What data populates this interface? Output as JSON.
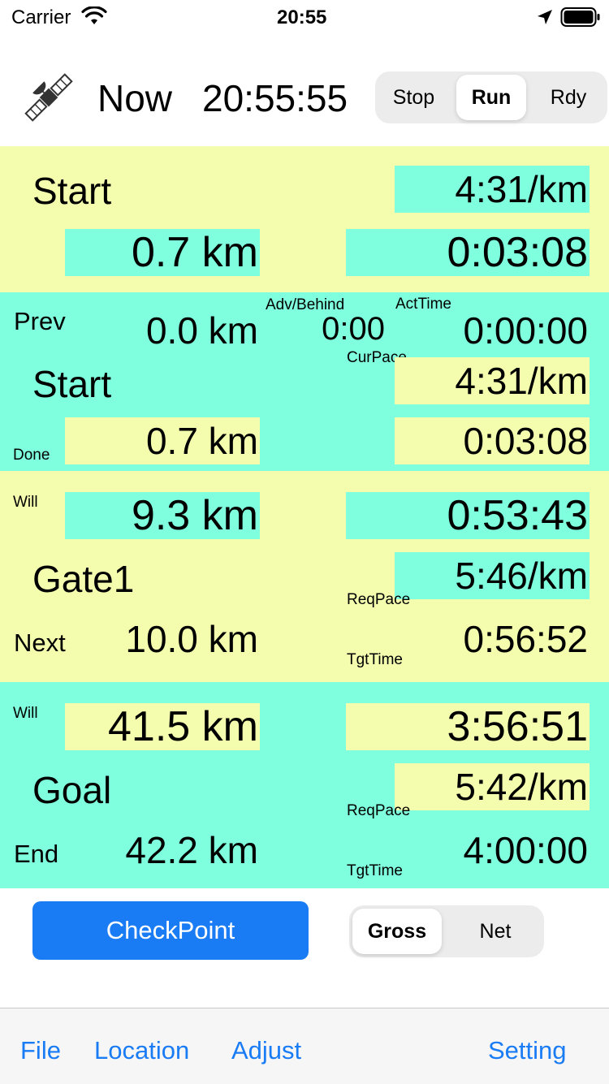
{
  "status_bar": {
    "carrier": "Carrier",
    "time": "20:55"
  },
  "header": {
    "now_label": "Now",
    "clock": "20:55:55",
    "mode_segment": [
      "Stop",
      "Run",
      "Rdy"
    ],
    "mode_selected": "Run"
  },
  "current": {
    "name": "Start",
    "pace": "4:31/km",
    "distance": "0.7 km",
    "elapsed": "0:03:08"
  },
  "prev_section": {
    "prev_label": "Prev",
    "prev_distance": "0.0 km",
    "adv_behind_label": "Adv/Behind",
    "adv_behind_value": "0:00",
    "act_time_label": "ActTime",
    "act_time_value": "0:00:00",
    "cur_pace_label": "CurPace",
    "name": "Start",
    "cur_pace_value": "4:31/km",
    "done_label": "Done",
    "done_distance": "0.7 km",
    "done_time": "0:03:08"
  },
  "next_section": {
    "will_label": "Will",
    "will_distance": "9.3 km",
    "will_time": "0:53:43",
    "name": "Gate1",
    "req_pace_label": "ReqPace",
    "req_pace_value": "5:46/km",
    "next_label": "Next",
    "next_distance": "10.0 km",
    "tgt_time_label": "TgtTime",
    "tgt_time_value": "0:56:52"
  },
  "goal_section": {
    "will_label": "Will",
    "will_distance": "41.5 km",
    "will_time": "3:56:51",
    "name": "Goal",
    "req_pace_label": "ReqPace",
    "req_pace_value": "5:42/km",
    "end_label": "End",
    "end_distance": "42.2 km",
    "tgt_time_label": "TgtTime",
    "tgt_time_value": "4:00:00"
  },
  "controls": {
    "checkpoint_label": "CheckPoint",
    "time_mode_segment": [
      "Gross",
      "Net"
    ],
    "time_mode_selected": "Gross"
  },
  "toolbar": {
    "file": "File",
    "location": "Location",
    "adjust": "Adjust",
    "setting": "Setting"
  },
  "colors": {
    "yellow_band": "#f4fcad",
    "aqua_band": "#7fffde",
    "accent_blue": "#1a7cf5"
  },
  "icons": [
    "wifi-icon",
    "location-arrow-icon",
    "battery-icon",
    "satellite-icon"
  ]
}
